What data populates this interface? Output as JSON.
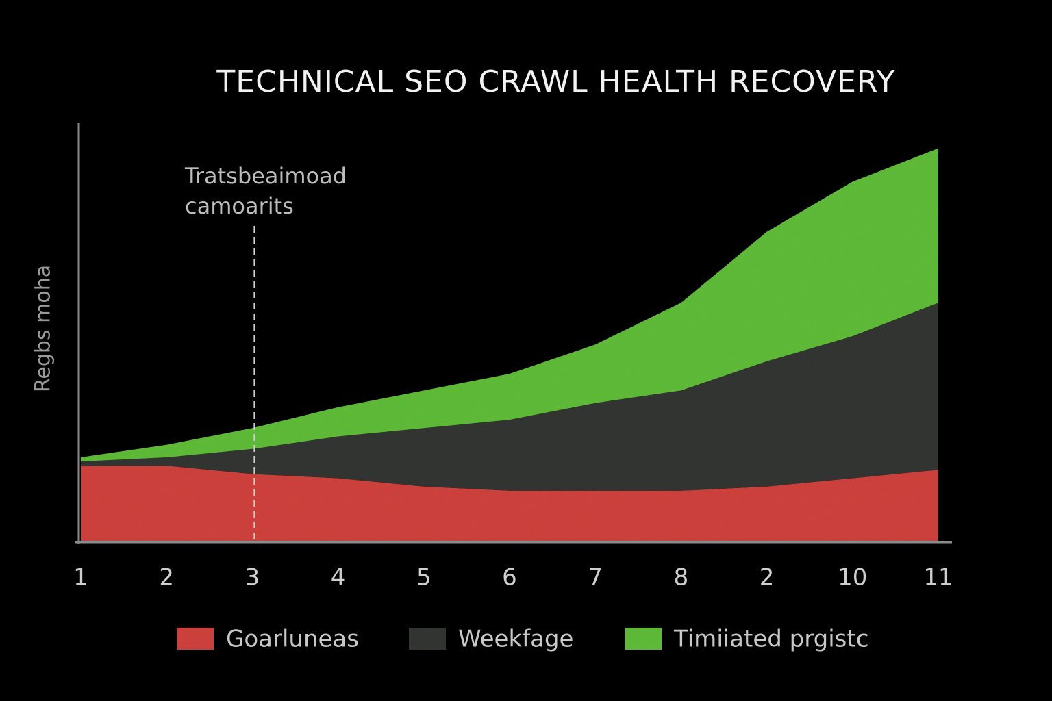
{
  "chart_data": {
    "type": "stacked_area",
    "title": "TECHNICAL SEO CRAWL HEALTH RECOVERY",
    "y_label": "Regbs moha",
    "categories": [
      "1",
      "2",
      "3",
      "4",
      "5",
      "6",
      "7",
      "8",
      "2",
      "10",
      "11"
    ],
    "series": [
      {
        "name": "Goarluneas",
        "color": "#d4453f",
        "values": [
          18,
          18,
          16,
          15,
          13,
          12,
          12,
          12,
          13,
          15,
          17
        ]
      },
      {
        "name": "Weekfage",
        "color": "#363836",
        "values": [
          1,
          2,
          6,
          10,
          14,
          17,
          21,
          24,
          30,
          34,
          40
        ]
      },
      {
        "name": "Timiiated prgistc",
        "color": "#62c13a",
        "values": [
          1,
          3,
          5,
          7,
          9,
          11,
          14,
          21,
          31,
          37,
          37
        ]
      }
    ],
    "ylim": [
      0,
      100
    ],
    "annotation": {
      "lines": [
        "Tratsbeaimoad",
        "camoarits"
      ],
      "x": "3"
    }
  }
}
